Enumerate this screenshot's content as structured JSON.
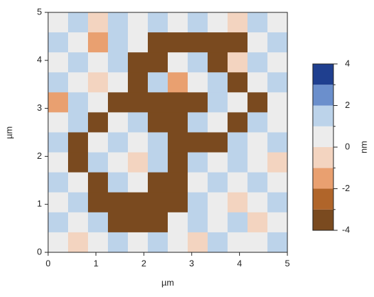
{
  "chart_data": {
    "type": "heatmap",
    "xlabel": "µm",
    "ylabel": "µm",
    "colorbar_label": "nm",
    "xlim": [
      0,
      5
    ],
    "ylim": [
      0,
      5
    ],
    "xticks": [
      0,
      1,
      2,
      3,
      4,
      5
    ],
    "yticks": [
      0,
      1,
      2,
      3,
      4,
      5
    ],
    "z": [
      [
        0,
        1,
        -1,
        1,
        0,
        1,
        0,
        1,
        0,
        -1,
        1,
        0
      ],
      [
        1,
        0,
        -2,
        1,
        0,
        -4,
        -4,
        -4,
        -4,
        -4,
        0,
        1
      ],
      [
        0,
        1,
        0,
        1,
        -4,
        -4,
        0,
        1,
        -4,
        -1,
        1,
        0
      ],
      [
        1,
        0,
        -1,
        0,
        -4,
        1,
        -2,
        0,
        1,
        -4,
        0,
        1
      ],
      [
        -2,
        1,
        0,
        -4,
        -4,
        -4,
        -4,
        -4,
        1,
        0,
        -4,
        0
      ],
      [
        0,
        1,
        -4,
        0,
        1,
        -4,
        -4,
        1,
        0,
        -4,
        1,
        0
      ],
      [
        1,
        -4,
        0,
        1,
        0,
        1,
        -4,
        -4,
        -4,
        1,
        0,
        1
      ],
      [
        0,
        -4,
        1,
        0,
        -1,
        1,
        -4,
        1,
        0,
        1,
        0,
        -1
      ],
      [
        1,
        0,
        -4,
        1,
        0,
        -4,
        -4,
        0,
        1,
        0,
        1,
        0
      ],
      [
        0,
        1,
        -4,
        -4,
        -4,
        -4,
        -4,
        1,
        0,
        -1,
        0,
        1
      ],
      [
        1,
        0,
        1,
        -4,
        -4,
        -4,
        0,
        1,
        0,
        1,
        -1,
        0
      ],
      [
        0,
        -1,
        0,
        1,
        0,
        1,
        0,
        -1,
        1,
        0,
        0,
        1
      ]
    ],
    "zlim": [
      -4,
      4
    ],
    "zticks": [
      -4,
      -2,
      0,
      2,
      4
    ],
    "levels": [
      -4,
      -3,
      -2,
      -1,
      0,
      1,
      2,
      3,
      4
    ],
    "colors": [
      "#7a4a1f",
      "#b0652a",
      "#e9a070",
      "#f3d4c0",
      "#ececec",
      "#bcd3ea",
      "#6b8fcc",
      "#1f3f8f"
    ]
  }
}
